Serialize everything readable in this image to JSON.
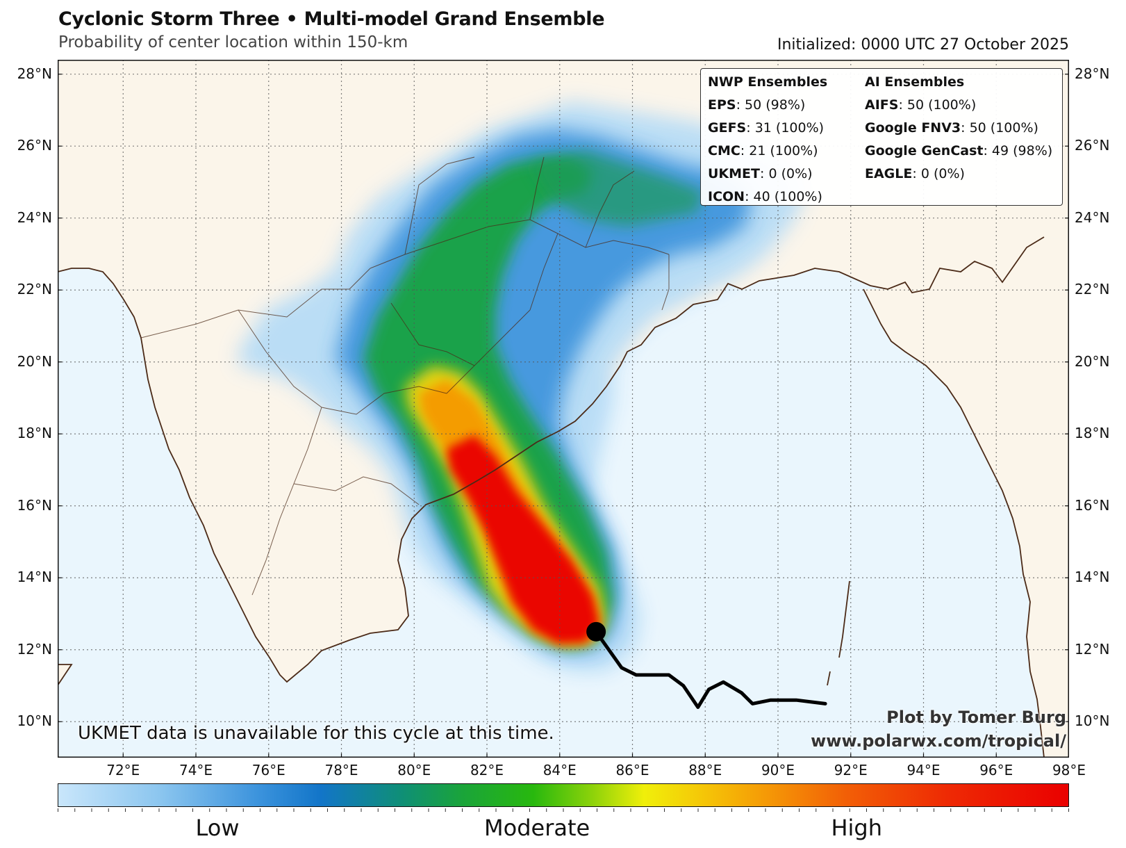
{
  "header": {
    "title": "Cyclonic Storm Three • Multi-model Grand Ensemble",
    "subtitle": "Probability of center location within 150-km",
    "initialized": "Initialized: 0000 UTC 27 October 2025"
  },
  "map": {
    "lon_range": [
      70.2,
      98
    ],
    "lat_range": [
      9.0,
      28.4
    ],
    "gridlines": true,
    "ocean_color": "#eaf6fd",
    "land_color": "#fbf5ea",
    "border_color": "#4b2a17",
    "lat_ticks": [
      "28°N",
      "26°N",
      "24°N",
      "22°N",
      "20°N",
      "18°N",
      "16°N",
      "14°N",
      "12°N",
      "10°N"
    ],
    "lat_values": [
      28,
      26,
      24,
      22,
      20,
      18,
      16,
      14,
      12,
      10
    ],
    "lon_ticks": [
      "72°E",
      "74°E",
      "76°E",
      "78°E",
      "80°E",
      "82°E",
      "84°E",
      "86°E",
      "88°E",
      "90°E",
      "92°E",
      "94°E",
      "96°E",
      "98°E"
    ],
    "lon_values": [
      72,
      74,
      76,
      78,
      80,
      82,
      84,
      86,
      88,
      90,
      92,
      94,
      96,
      98
    ]
  },
  "track": {
    "color": "#000000",
    "current_position": {
      "lon": 85.0,
      "lat": 12.5
    },
    "points": [
      {
        "lon": 91.3,
        "lat": 10.5
      },
      {
        "lon": 90.5,
        "lat": 10.6
      },
      {
        "lon": 89.8,
        "lat": 10.6
      },
      {
        "lon": 89.3,
        "lat": 10.5
      },
      {
        "lon": 89.0,
        "lat": 10.8
      },
      {
        "lon": 88.5,
        "lat": 11.1
      },
      {
        "lon": 88.1,
        "lat": 10.9
      },
      {
        "lon": 87.8,
        "lat": 10.4
      },
      {
        "lon": 87.6,
        "lat": 10.7
      },
      {
        "lon": 87.4,
        "lat": 11.0
      },
      {
        "lon": 87.0,
        "lat": 11.3
      },
      {
        "lon": 86.1,
        "lat": 11.3
      },
      {
        "lon": 85.7,
        "lat": 11.5
      },
      {
        "lon": 85.0,
        "lat": 12.5
      }
    ]
  },
  "legend": {
    "nwp_header": "NWP Ensembles",
    "ai_header": "AI Ensembles",
    "nwp": [
      {
        "name": "EPS",
        "value": ": 50 (98%)"
      },
      {
        "name": "GEFS",
        "value": ": 31 (100%)"
      },
      {
        "name": "CMC",
        "value": ": 21 (100%)"
      },
      {
        "name": "UKMET",
        "value": ": 0 (0%)"
      },
      {
        "name": "ICON",
        "value": ": 40 (100%)"
      }
    ],
    "ai": [
      {
        "name": "AIFS",
        "value": ": 50 (100%)"
      },
      {
        "name": "Google FNV3",
        "value": ": 50 (100%)"
      },
      {
        "name": "Google GenCast",
        "value": ": 49 (98%)"
      },
      {
        "name": "EAGLE",
        "value": ": 0 (0%)"
      }
    ]
  },
  "note": "UKMET data is unavailable for this cycle at this time.",
  "credit": {
    "line1": "Plot by Tomer Burg",
    "line2": "www.polarwx.com/tropical/"
  },
  "colorbar": {
    "labels": [
      "Low",
      "Moderate",
      "High"
    ],
    "label_positions": [
      0.158,
      0.474,
      0.79
    ]
  }
}
